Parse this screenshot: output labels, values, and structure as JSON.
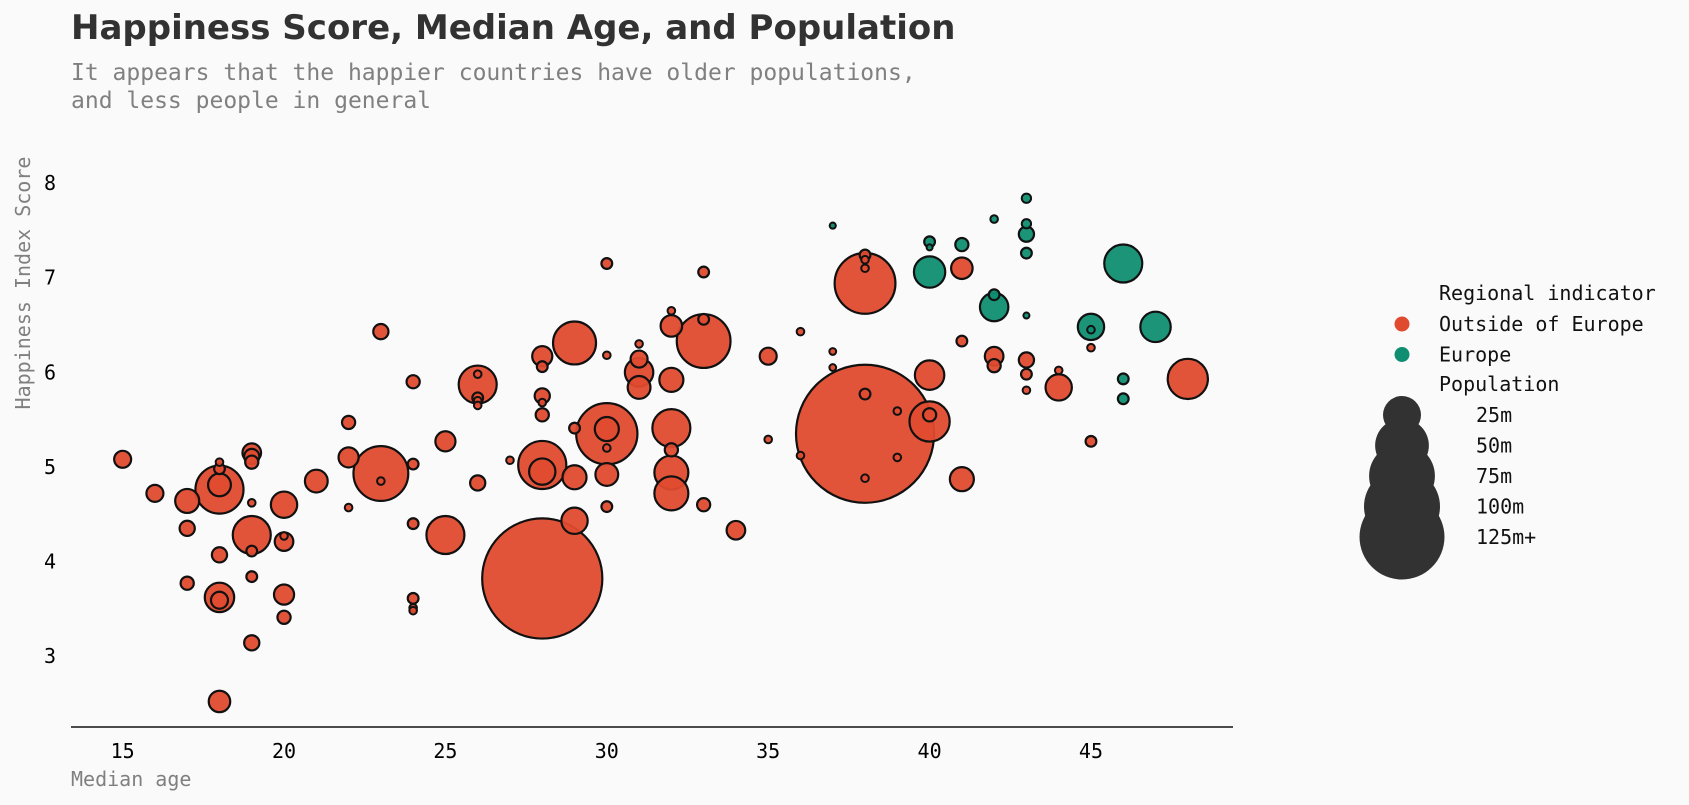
{
  "chart_data": {
    "type": "scatter",
    "title": "Happiness Score, Median Age, and Population",
    "subtitle_lines": [
      "It appears that the happier countries have older populations,",
      "and less people in general"
    ],
    "xlabel": "Median age",
    "ylabel": "Happiness Index Score",
    "xlim": [
      13.4,
      49.4
    ],
    "ylim": [
      2.25,
      8.35
    ],
    "xticks": [
      15,
      20,
      25,
      30,
      35,
      40,
      45
    ],
    "yticks": [
      3,
      4,
      5,
      6,
      7,
      8
    ],
    "grid": false,
    "legend_position": "right",
    "size_unit": "population (millions)",
    "colors": {
      "outside_europe": "#e04b2f",
      "europe": "#0f8e71",
      "size_legend": "#323232",
      "edge": "#111111",
      "axis": "#111111"
    },
    "legend": {
      "color_title": "Regional indicator",
      "color_entries": [
        {
          "label": "Outside of Europe",
          "color": "#e04b2f"
        },
        {
          "label": "Europe",
          "color": "#0f8e71"
        }
      ],
      "size_title": "Population",
      "size_entries": [
        {
          "label": "25m",
          "value": 25
        },
        {
          "label": "50m",
          "value": 50
        },
        {
          "label": "75m",
          "value": 75
        },
        {
          "label": "100m",
          "value": 100
        },
        {
          "label": "125m+",
          "value": 125
        }
      ]
    },
    "series": [
      {
        "name": "Outside of Europe",
        "color": "#e04b2f",
        "points": [
          {
            "x": 15,
            "y": 5.08,
            "pop": 5
          },
          {
            "x": 16,
            "y": 4.72,
            "pop": 5
          },
          {
            "x": 17,
            "y": 4.64,
            "pop": 10
          },
          {
            "x": 17,
            "y": 4.35,
            "pop": 4
          },
          {
            "x": 17,
            "y": 3.77,
            "pop": 3
          },
          {
            "x": 18,
            "y": 4.76,
            "pop": 40
          },
          {
            "x": 18,
            "y": 4.81,
            "pop": 9
          },
          {
            "x": 18,
            "y": 5.05,
            "pop": 1
          },
          {
            "x": 18,
            "y": 4.98,
            "pop": 2
          },
          {
            "x": 18,
            "y": 4.07,
            "pop": 4
          },
          {
            "x": 18,
            "y": 3.62,
            "pop": 15
          },
          {
            "x": 18,
            "y": 3.59,
            "pop": 5
          },
          {
            "x": 18,
            "y": 2.52,
            "pop": 8
          },
          {
            "x": 19,
            "y": 5.15,
            "pop": 6
          },
          {
            "x": 19,
            "y": 5.11,
            "pop": 4
          },
          {
            "x": 19,
            "y": 5.05,
            "pop": 3
          },
          {
            "x": 19,
            "y": 4.62,
            "pop": 1
          },
          {
            "x": 19,
            "y": 4.28,
            "pop": 25
          },
          {
            "x": 19,
            "y": 4.11,
            "pop": 2
          },
          {
            "x": 19,
            "y": 3.84,
            "pop": 2
          },
          {
            "x": 19,
            "y": 3.14,
            "pop": 4
          },
          {
            "x": 20,
            "y": 4.6,
            "pop": 12
          },
          {
            "x": 20,
            "y": 4.27,
            "pop": 1
          },
          {
            "x": 20,
            "y": 4.21,
            "pop": 6
          },
          {
            "x": 20,
            "y": 3.65,
            "pop": 7
          },
          {
            "x": 20,
            "y": 3.41,
            "pop": 3
          },
          {
            "x": 21,
            "y": 4.85,
            "pop": 9
          },
          {
            "x": 22,
            "y": 5.47,
            "pop": 3
          },
          {
            "x": 22,
            "y": 5.1,
            "pop": 7
          },
          {
            "x": 22,
            "y": 4.57,
            "pop": 1
          },
          {
            "x": 23,
            "y": 4.93,
            "pop": 52
          },
          {
            "x": 23,
            "y": 4.85,
            "pop": 1
          },
          {
            "x": 23,
            "y": 6.43,
            "pop": 4
          },
          {
            "x": 24,
            "y": 5.9,
            "pop": 3
          },
          {
            "x": 24,
            "y": 5.03,
            "pop": 2
          },
          {
            "x": 24,
            "y": 4.4,
            "pop": 2
          },
          {
            "x": 24,
            "y": 3.61,
            "pop": 2
          },
          {
            "x": 24,
            "y": 3.51,
            "pop": 1
          },
          {
            "x": 24,
            "y": 3.48,
            "pop": 1
          },
          {
            "x": 25,
            "y": 5.27,
            "pop": 7
          },
          {
            "x": 25,
            "y": 4.28,
            "pop": 25
          },
          {
            "x": 26,
            "y": 5.87,
            "pop": 25
          },
          {
            "x": 26,
            "y": 5.98,
            "pop": 1
          },
          {
            "x": 26,
            "y": 5.73,
            "pop": 2
          },
          {
            "x": 26,
            "y": 5.7,
            "pop": 1
          },
          {
            "x": 26,
            "y": 5.65,
            "pop": 1
          },
          {
            "x": 26,
            "y": 4.83,
            "pop": 4
          },
          {
            "x": 27,
            "y": 5.07,
            "pop": 1
          },
          {
            "x": 28,
            "y": 3.82,
            "pop": 250
          },
          {
            "x": 28,
            "y": 5.02,
            "pop": 40
          },
          {
            "x": 28,
            "y": 4.95,
            "pop": 12
          },
          {
            "x": 28,
            "y": 6.17,
            "pop": 7
          },
          {
            "x": 28,
            "y": 6.06,
            "pop": 2
          },
          {
            "x": 28,
            "y": 5.75,
            "pop": 4
          },
          {
            "x": 28,
            "y": 5.68,
            "pop": 1
          },
          {
            "x": 28,
            "y": 5.55,
            "pop": 3
          },
          {
            "x": 29,
            "y": 6.31,
            "pop": 32
          },
          {
            "x": 29,
            "y": 5.41,
            "pop": 2
          },
          {
            "x": 29,
            "y": 4.89,
            "pop": 10
          },
          {
            "x": 29,
            "y": 4.43,
            "pop": 12
          },
          {
            "x": 30,
            "y": 7.15,
            "pop": 2
          },
          {
            "x": 30,
            "y": 6.18,
            "pop": 1
          },
          {
            "x": 30,
            "y": 5.35,
            "pop": 65
          },
          {
            "x": 30,
            "y": 5.4,
            "pop": 10
          },
          {
            "x": 30,
            "y": 5.2,
            "pop": 1
          },
          {
            "x": 30,
            "y": 4.92,
            "pop": 9
          },
          {
            "x": 30,
            "y": 4.58,
            "pop": 2
          },
          {
            "x": 31,
            "y": 6.3,
            "pop": 1
          },
          {
            "x": 31,
            "y": 6.14,
            "pop": 5
          },
          {
            "x": 31,
            "y": 6.0,
            "pop": 14
          },
          {
            "x": 31,
            "y": 5.84,
            "pop": 9
          },
          {
            "x": 32,
            "y": 6.65,
            "pop": 1
          },
          {
            "x": 32,
            "y": 6.49,
            "pop": 8
          },
          {
            "x": 32,
            "y": 5.92,
            "pop": 10
          },
          {
            "x": 32,
            "y": 5.41,
            "pop": 25
          },
          {
            "x": 32,
            "y": 5.18,
            "pop": 3
          },
          {
            "x": 32,
            "y": 4.94,
            "pop": 20
          },
          {
            "x": 32,
            "y": 4.72,
            "pop": 20
          },
          {
            "x": 33,
            "y": 7.06,
            "pop": 2
          },
          {
            "x": 33,
            "y": 6.56,
            "pop": 2
          },
          {
            "x": 33,
            "y": 6.33,
            "pop": 50
          },
          {
            "x": 33,
            "y": 4.6,
            "pop": 3
          },
          {
            "x": 34,
            "y": 4.33,
            "pop": 6
          },
          {
            "x": 35,
            "y": 6.17,
            "pop": 5
          },
          {
            "x": 35,
            "y": 5.29,
            "pop": 1
          },
          {
            "x": 36,
            "y": 6.43,
            "pop": 1
          },
          {
            "x": 36,
            "y": 5.12,
            "pop": 1
          },
          {
            "x": 37,
            "y": 7.55,
            "pop": 0.5
          },
          {
            "x": 37,
            "y": 6.22,
            "pop": 0.8
          },
          {
            "x": 37,
            "y": 6.05,
            "pop": 0.8
          },
          {
            "x": 38,
            "y": 6.94,
            "pop": 64
          },
          {
            "x": 38,
            "y": 7.24,
            "pop": 2
          },
          {
            "x": 38,
            "y": 7.19,
            "pop": 1
          },
          {
            "x": 38,
            "y": 7.1,
            "pop": 1
          },
          {
            "x": 38,
            "y": 5.35,
            "pop": 330
          },
          {
            "x": 38,
            "y": 5.77,
            "pop": 2
          },
          {
            "x": 38,
            "y": 4.88,
            "pop": 1
          },
          {
            "x": 39,
            "y": 5.59,
            "pop": 1
          },
          {
            "x": 39,
            "y": 5.1,
            "pop": 1
          },
          {
            "x": 40,
            "y": 5.97,
            "pop": 15
          },
          {
            "x": 40,
            "y": 5.48,
            "pop": 28
          },
          {
            "x": 40,
            "y": 5.55,
            "pop": 3
          },
          {
            "x": 41,
            "y": 7.1,
            "pop": 8
          },
          {
            "x": 41,
            "y": 6.33,
            "pop": 2
          },
          {
            "x": 41,
            "y": 4.87,
            "pop": 10
          },
          {
            "x": 42,
            "y": 6.17,
            "pop": 6
          },
          {
            "x": 42,
            "y": 6.07,
            "pop": 3
          },
          {
            "x": 43,
            "y": 6.13,
            "pop": 4
          },
          {
            "x": 43,
            "y": 5.98,
            "pop": 2
          },
          {
            "x": 43,
            "y": 5.81,
            "pop": 1
          },
          {
            "x": 44,
            "y": 5.84,
            "pop": 12
          },
          {
            "x": 44,
            "y": 6.02,
            "pop": 1
          },
          {
            "x": 45,
            "y": 6.26,
            "pop": 1
          },
          {
            "x": 45,
            "y": 5.27,
            "pop": 2
          },
          {
            "x": 48,
            "y": 5.93,
            "pop": 28
          }
        ]
      },
      {
        "name": "Europe",
        "color": "#0f8e71",
        "points": [
          {
            "x": 37,
            "y": 7.55,
            "pop": 0.4
          },
          {
            "x": 40,
            "y": 7.38,
            "pop": 2
          },
          {
            "x": 40,
            "y": 7.32,
            "pop": 0.5
          },
          {
            "x": 40,
            "y": 7.06,
            "pop": 17
          },
          {
            "x": 41,
            "y": 7.35,
            "pop": 3
          },
          {
            "x": 42,
            "y": 7.62,
            "pop": 1
          },
          {
            "x": 42,
            "y": 6.82,
            "pop": 2
          },
          {
            "x": 42,
            "y": 6.69,
            "pop": 14
          },
          {
            "x": 43,
            "y": 7.84,
            "pop": 1.5
          },
          {
            "x": 43,
            "y": 7.57,
            "pop": 1.5
          },
          {
            "x": 43,
            "y": 7.46,
            "pop": 4
          },
          {
            "x": 43,
            "y": 7.26,
            "pop": 2
          },
          {
            "x": 43,
            "y": 6.6,
            "pop": 0.5
          },
          {
            "x": 45,
            "y": 6.48,
            "pop": 12
          },
          {
            "x": 45,
            "y": 6.45,
            "pop": 1
          },
          {
            "x": 46,
            "y": 7.15,
            "pop": 25
          },
          {
            "x": 46,
            "y": 5.93,
            "pop": 2
          },
          {
            "x": 46,
            "y": 5.72,
            "pop": 2
          },
          {
            "x": 47,
            "y": 6.48,
            "pop": 16
          }
        ]
      }
    ]
  }
}
